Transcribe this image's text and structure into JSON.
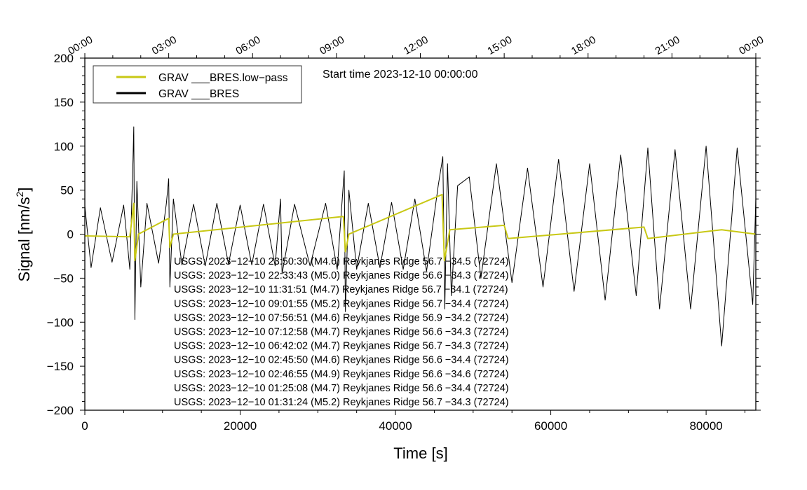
{
  "chart_data": {
    "type": "line",
    "title": "Start time 2023-12-10 00:00:00",
    "xlabel": "Time [s]",
    "ylabel_main": "Signal [nm/s",
    "ylabel_sup": "2",
    "ylabel_close": "]",
    "xlim": [
      0,
      86400
    ],
    "ylim": [
      -200,
      200
    ],
    "x_ticks": [
      {
        "value": 0,
        "label": "0"
      },
      {
        "value": 20000,
        "label": "20000"
      },
      {
        "value": 40000,
        "label": "40000"
      },
      {
        "value": 60000,
        "label": "60000"
      },
      {
        "value": 80000,
        "label": "80000"
      }
    ],
    "y_ticks": [
      {
        "value": 200,
        "label": "200"
      },
      {
        "value": 150,
        "label": "150"
      },
      {
        "value": 100,
        "label": "100"
      },
      {
        "value": 50,
        "label": "50"
      },
      {
        "value": 0,
        "label": "0"
      },
      {
        "value": -50,
        "label": "−50"
      },
      {
        "value": -100,
        "label": "−100"
      },
      {
        "value": -150,
        "label": "−150"
      },
      {
        "value": -200,
        "label": "−200"
      }
    ],
    "top_ticks": [
      {
        "value": 0,
        "label": "00:00"
      },
      {
        "value": 10800,
        "label": "03:00"
      },
      {
        "value": 21600,
        "label": "06:00"
      },
      {
        "value": 32400,
        "label": "09:00"
      },
      {
        "value": 43200,
        "label": "12:00"
      },
      {
        "value": 54000,
        "label": "15:00"
      },
      {
        "value": 64800,
        "label": "18:00"
      },
      {
        "value": 75600,
        "label": "21:00"
      },
      {
        "value": 86400,
        "label": "00:00"
      }
    ],
    "legend_position": "top-left",
    "legend": [
      {
        "label": "GRAV ___BRES.low−pass",
        "color": "#c8c814"
      },
      {
        "label": "GRAV ___BRES",
        "color": "#000000"
      }
    ],
    "series": [
      {
        "name": "GRAV ___BRES",
        "color": "#000000",
        "points": [
          [
            0,
            32
          ],
          [
            800,
            -38
          ],
          [
            2000,
            30
          ],
          [
            3500,
            -32
          ],
          [
            5000,
            33
          ],
          [
            5800,
            -40
          ],
          [
            6200,
            85
          ],
          [
            6300,
            122
          ],
          [
            6450,
            -97
          ],
          [
            6700,
            60
          ],
          [
            7200,
            -60
          ],
          [
            8000,
            35
          ],
          [
            9500,
            -33
          ],
          [
            10500,
            35
          ],
          [
            10800,
            63
          ],
          [
            10950,
            -60
          ],
          [
            11400,
            40
          ],
          [
            12500,
            -35
          ],
          [
            14000,
            34
          ],
          [
            15500,
            -36
          ],
          [
            17000,
            35
          ],
          [
            18500,
            -34
          ],
          [
            20000,
            33
          ],
          [
            21500,
            -35
          ],
          [
            23000,
            34
          ],
          [
            24500,
            -36
          ],
          [
            25200,
            40
          ],
          [
            25400,
            -45
          ],
          [
            27000,
            34
          ],
          [
            29000,
            -36
          ],
          [
            31000,
            35
          ],
          [
            32500,
            -40
          ],
          [
            33400,
            72
          ],
          [
            33550,
            -88
          ],
          [
            34000,
            50
          ],
          [
            35000,
            -40
          ],
          [
            36500,
            35
          ],
          [
            38000,
            -38
          ],
          [
            39500,
            36
          ],
          [
            41000,
            -40
          ],
          [
            42500,
            40
          ],
          [
            44000,
            -42
          ],
          [
            45500,
            55
          ],
          [
            46100,
            88
          ],
          [
            46350,
            -85
          ],
          [
            46700,
            80
          ],
          [
            47200,
            -70
          ],
          [
            48000,
            55
          ],
          [
            49500,
            65
          ],
          [
            51000,
            -50
          ],
          [
            53000,
            80
          ],
          [
            55000,
            -55
          ],
          [
            57000,
            75
          ],
          [
            59000,
            -60
          ],
          [
            61000,
            85
          ],
          [
            63000,
            -65
          ],
          [
            65000,
            80
          ],
          [
            67000,
            -75
          ],
          [
            69000,
            90
          ],
          [
            71000,
            -70
          ],
          [
            72500,
            98
          ],
          [
            74000,
            -85
          ],
          [
            76000,
            96
          ],
          [
            78000,
            -85
          ],
          [
            80000,
            100
          ],
          [
            82000,
            -127
          ],
          [
            84000,
            98
          ],
          [
            86000,
            -80
          ],
          [
            86400,
            40
          ]
        ]
      },
      {
        "name": "GRAV ___BRES.low−pass",
        "color": "#c8c814",
        "points": [
          [
            0,
            -2
          ],
          [
            5800,
            -3
          ],
          [
            6300,
            35
          ],
          [
            6450,
            -30
          ],
          [
            6900,
            0
          ],
          [
            10800,
            18
          ],
          [
            10950,
            -15
          ],
          [
            11400,
            0
          ],
          [
            33300,
            20
          ],
          [
            33550,
            -20
          ],
          [
            34000,
            0
          ],
          [
            46000,
            45
          ],
          [
            46300,
            -30
          ],
          [
            47000,
            5
          ],
          [
            54000,
            10
          ],
          [
            54500,
            -5
          ],
          [
            72000,
            8
          ],
          [
            72500,
            -5
          ],
          [
            82000,
            5
          ],
          [
            86400,
            0
          ]
        ]
      }
    ],
    "annotations": [
      "USGS: 2023−12−10 23:50:30 (M4.6) Reykjanes Ridge 56.7 −34.5 (72724)",
      "USGS: 2023−12−10 22:33:43 (M5.0) Reykjanes Ridge 56.6 −34.3 (72724)",
      "USGS: 2023−12−10 11:31:51 (M4.7) Reykjanes Ridge 56.7 −34.1 (72724)",
      "USGS: 2023−12−10 09:01:55 (M5.2) Reykjanes Ridge 56.7 −34.4 (72724)",
      "USGS: 2023−12−10 07:56:51 (M4.6) Reykjanes Ridge 56.9 −34.2 (72724)",
      "USGS: 2023−12−10 07:12:58 (M4.7) Reykjanes Ridge 56.6 −34.3 (72724)",
      "USGS: 2023−12−10 06:42:02 (M4.7) Reykjanes Ridge 56.7 −34.3 (72724)",
      "USGS: 2023−12−10 02:45:50 (M4.6) Reykjanes Ridge 56.6 −34.4 (72724)",
      "USGS: 2023−12−10 02:46:55 (M4.9) Reykjanes Ridge 56.6 −34.6 (72724)",
      "USGS: 2023−12−10 01:25:08 (M4.7) Reykjanes Ridge 56.6 −34.4 (72724)",
      "USGS: 2023−12−10 01:31:24 (M5.2) Reykjanes Ridge 56.7 −34.3 (72724)"
    ]
  }
}
